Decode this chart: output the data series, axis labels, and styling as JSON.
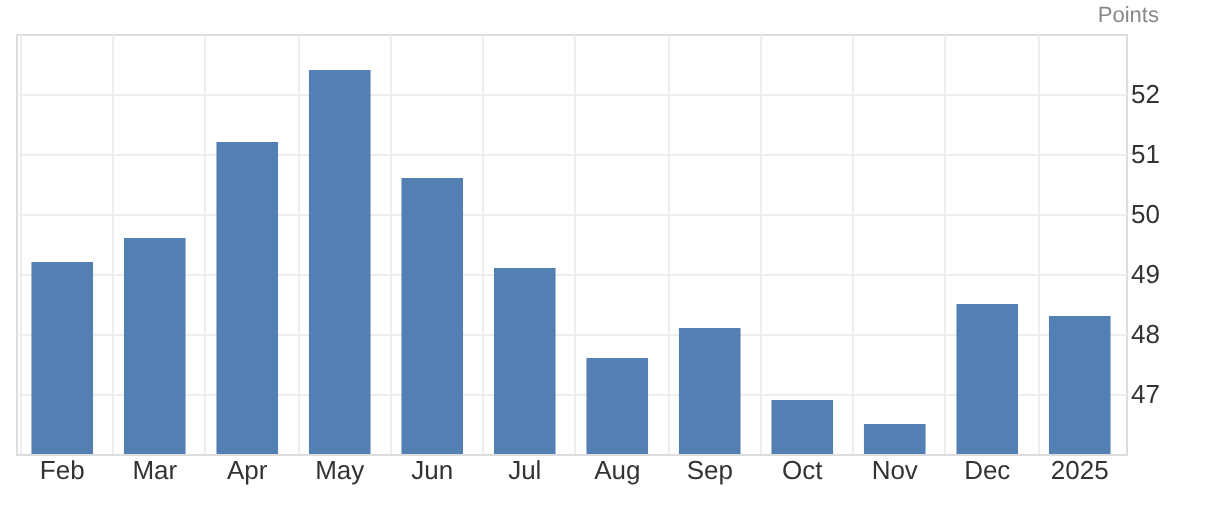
{
  "chart_data": {
    "type": "bar",
    "ylabel": "Points",
    "categories": [
      "Feb",
      "Mar",
      "Apr",
      "May",
      "Jun",
      "Jul",
      "Aug",
      "Sep",
      "Oct",
      "Nov",
      "Dec",
      "2025"
    ],
    "values": [
      49.2,
      49.6,
      51.2,
      52.4,
      50.6,
      49.1,
      47.6,
      48.1,
      46.9,
      46.5,
      48.5,
      48.3
    ],
    "color": "#537fb2",
    "ylim": [
      46,
      53
    ],
    "yticks": [
      47,
      48,
      49,
      50,
      51,
      52
    ],
    "grid": true
  }
}
